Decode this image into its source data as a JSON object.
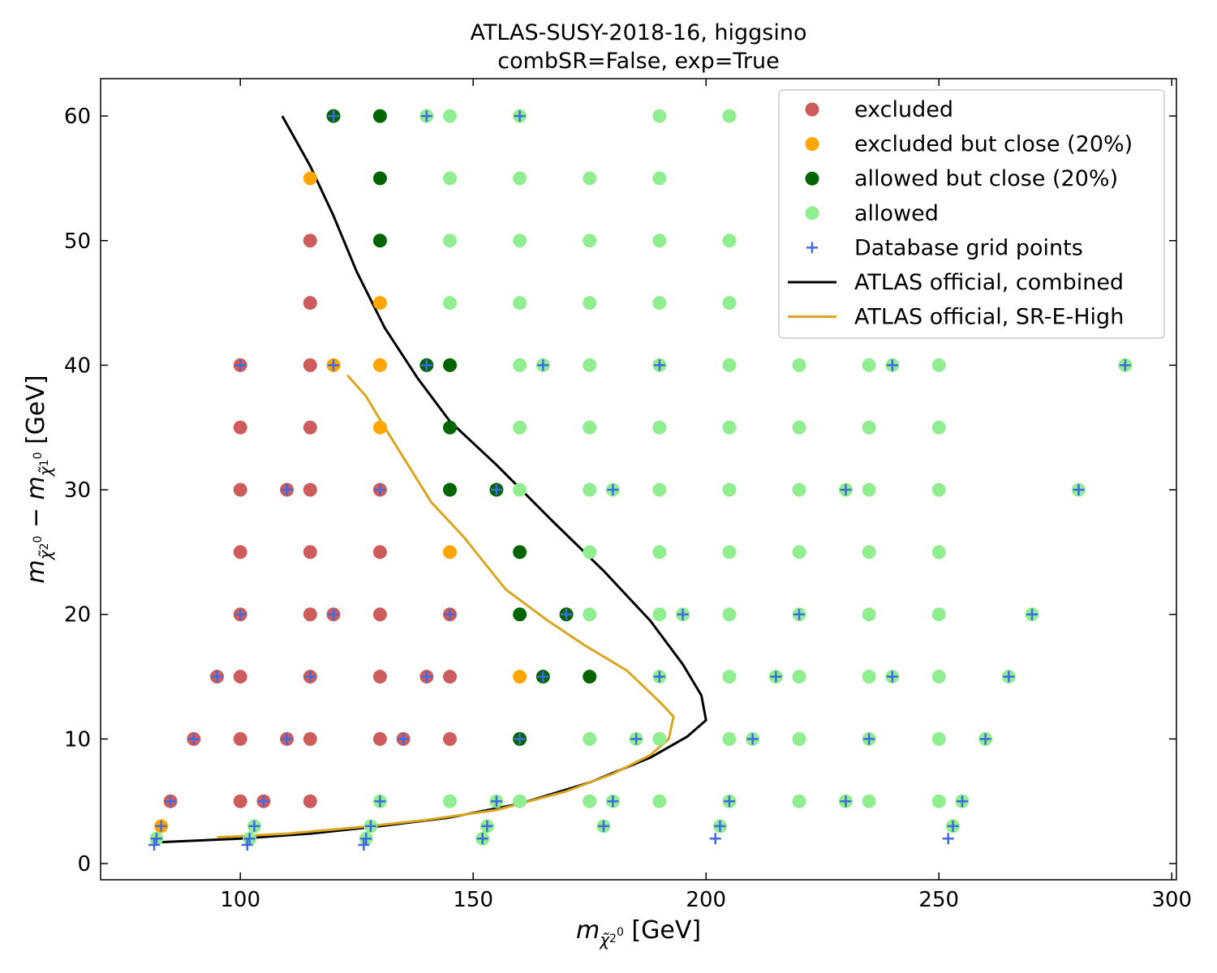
{
  "chart_data": {
    "type": "scatter",
    "title": "ATLAS-SUSY-2018-16, higgsino",
    "subtitle": "combSR=False, exp=True",
    "xlabel": "m_{χ̃2⁰} [GeV]",
    "ylabel": "m_{χ̃2⁰} − m_{χ̃1⁰} [GeV]",
    "xlim": [
      70,
      301
    ],
    "ylim": [
      -1.3,
      63
    ],
    "xticks": [
      100,
      150,
      200,
      250,
      300
    ],
    "yticks": [
      0,
      10,
      20,
      30,
      40,
      50,
      60
    ],
    "grid": false,
    "legend_placement": "upper-right",
    "colors": {
      "excluded": "#cd5c5c",
      "excluded_close": "#ffa500",
      "allowed_close": "#006400",
      "allowed": "#90ee90",
      "grid_points": "#4169e1",
      "combined": "#000000",
      "sr_e_high": "#daa520"
    },
    "series": [
      {
        "name": "excluded",
        "kind": "points",
        "color_key": "excluded",
        "points": [
          [
            85,
            5
          ],
          [
            90,
            10
          ],
          [
            95,
            15
          ],
          [
            100,
            5
          ],
          [
            100,
            10
          ],
          [
            100,
            15
          ],
          [
            100,
            20
          ],
          [
            100,
            25
          ],
          [
            100,
            30
          ],
          [
            100,
            35
          ],
          [
            100,
            40
          ],
          [
            105,
            5
          ],
          [
            110,
            10
          ],
          [
            110,
            30
          ],
          [
            115,
            5
          ],
          [
            115,
            10
          ],
          [
            115,
            15
          ],
          [
            115,
            20
          ],
          [
            115,
            25
          ],
          [
            115,
            30
          ],
          [
            115,
            35
          ],
          [
            115,
            40
          ],
          [
            115,
            45
          ],
          [
            115,
            50
          ],
          [
            120,
            20
          ],
          [
            130,
            10
          ],
          [
            130,
            15
          ],
          [
            130,
            20
          ],
          [
            130,
            25
          ],
          [
            130,
            30
          ],
          [
            135,
            10
          ],
          [
            140,
            15
          ],
          [
            145,
            10
          ],
          [
            145,
            15
          ],
          [
            145,
            20
          ]
        ]
      },
      {
        "name": "excluded but close (20%)",
        "kind": "points",
        "color_key": "excluded_close",
        "points": [
          [
            83,
            3
          ],
          [
            115,
            55
          ],
          [
            120,
            40
          ],
          [
            130,
            35
          ],
          [
            130,
            40
          ],
          [
            130,
            45
          ],
          [
            145,
            25
          ],
          [
            160,
            15
          ]
        ]
      },
      {
        "name": "allowed but close (20%)",
        "kind": "points",
        "color_key": "allowed_close",
        "points": [
          [
            120,
            60
          ],
          [
            130,
            50
          ],
          [
            130,
            55
          ],
          [
            130,
            60
          ],
          [
            140,
            40
          ],
          [
            145,
            30
          ],
          [
            145,
            35
          ],
          [
            145,
            40
          ],
          [
            155,
            30
          ],
          [
            160,
            10
          ],
          [
            160,
            20
          ],
          [
            160,
            25
          ],
          [
            165,
            15
          ],
          [
            170,
            20
          ],
          [
            175,
            15
          ]
        ]
      },
      {
        "name": "allowed",
        "kind": "points",
        "color_key": "allowed",
        "points": [
          [
            82,
            2
          ],
          [
            102,
            2
          ],
          [
            103,
            3
          ],
          [
            127,
            2
          ],
          [
            128,
            3
          ],
          [
            130,
            5
          ],
          [
            140,
            60
          ],
          [
            145,
            5
          ],
          [
            145,
            45
          ],
          [
            145,
            50
          ],
          [
            145,
            55
          ],
          [
            145,
            60
          ],
          [
            152,
            2
          ],
          [
            153,
            3
          ],
          [
            155,
            5
          ],
          [
            160,
            5
          ],
          [
            160,
            30
          ],
          [
            160,
            35
          ],
          [
            160,
            40
          ],
          [
            160,
            45
          ],
          [
            160,
            50
          ],
          [
            160,
            55
          ],
          [
            160,
            60
          ],
          [
            165,
            40
          ],
          [
            175,
            5
          ],
          [
            175,
            10
          ],
          [
            175,
            20
          ],
          [
            175,
            25
          ],
          [
            175,
            30
          ],
          [
            175,
            35
          ],
          [
            175,
            40
          ],
          [
            175,
            45
          ],
          [
            175,
            50
          ],
          [
            175,
            55
          ],
          [
            178,
            3
          ],
          [
            180,
            5
          ],
          [
            180,
            30
          ],
          [
            185,
            10
          ],
          [
            190,
            5
          ],
          [
            190,
            10
          ],
          [
            190,
            15
          ],
          [
            190,
            20
          ],
          [
            190,
            25
          ],
          [
            190,
            30
          ],
          [
            190,
            35
          ],
          [
            190,
            40
          ],
          [
            190,
            45
          ],
          [
            190,
            50
          ],
          [
            190,
            55
          ],
          [
            190,
            60
          ],
          [
            195,
            20
          ],
          [
            203,
            3
          ],
          [
            205,
            5
          ],
          [
            205,
            10
          ],
          [
            205,
            15
          ],
          [
            205,
            20
          ],
          [
            205,
            25
          ],
          [
            205,
            30
          ],
          [
            205,
            35
          ],
          [
            205,
            40
          ],
          [
            205,
            45
          ],
          [
            205,
            50
          ],
          [
            205,
            60
          ],
          [
            210,
            10
          ],
          [
            215,
            15
          ],
          [
            220,
            5
          ],
          [
            220,
            10
          ],
          [
            220,
            15
          ],
          [
            220,
            20
          ],
          [
            220,
            25
          ],
          [
            220,
            30
          ],
          [
            220,
            35
          ],
          [
            220,
            40
          ],
          [
            230,
            5
          ],
          [
            230,
            30
          ],
          [
            235,
            5
          ],
          [
            235,
            10
          ],
          [
            235,
            15
          ],
          [
            235,
            20
          ],
          [
            235,
            25
          ],
          [
            235,
            30
          ],
          [
            235,
            35
          ],
          [
            235,
            40
          ],
          [
            240,
            15
          ],
          [
            240,
            40
          ],
          [
            250,
            5
          ],
          [
            250,
            10
          ],
          [
            250,
            15
          ],
          [
            250,
            20
          ],
          [
            250,
            25
          ],
          [
            250,
            30
          ],
          [
            250,
            35
          ],
          [
            250,
            40
          ],
          [
            253,
            3
          ],
          [
            255,
            5
          ],
          [
            260,
            10
          ],
          [
            265,
            15
          ],
          [
            270,
            20
          ],
          [
            280,
            30
          ],
          [
            290,
            40
          ]
        ]
      },
      {
        "name": "Database grid points",
        "kind": "plus",
        "color_key": "grid_points",
        "points": [
          [
            82,
            2
          ],
          [
            81.5,
            1.5
          ],
          [
            83,
            3
          ],
          [
            85,
            5
          ],
          [
            90,
            10
          ],
          [
            95,
            15
          ],
          [
            100,
            20
          ],
          [
            100,
            40
          ],
          [
            101.5,
            1.5
          ],
          [
            102,
            2
          ],
          [
            103,
            3
          ],
          [
            105,
            5
          ],
          [
            110,
            10
          ],
          [
            110,
            30
          ],
          [
            115,
            15
          ],
          [
            120,
            20
          ],
          [
            120,
            40
          ],
          [
            120,
            60
          ],
          [
            126.5,
            1.5
          ],
          [
            127,
            2
          ],
          [
            128,
            3
          ],
          [
            130,
            5
          ],
          [
            130,
            30
          ],
          [
            135,
            10
          ],
          [
            140,
            15
          ],
          [
            140,
            40
          ],
          [
            140,
            60
          ],
          [
            145,
            20
          ],
          [
            152,
            2
          ],
          [
            153,
            3
          ],
          [
            155,
            5
          ],
          [
            155,
            30
          ],
          [
            160,
            10
          ],
          [
            160,
            60
          ],
          [
            165,
            15
          ],
          [
            165,
            40
          ],
          [
            170,
            20
          ],
          [
            178,
            3
          ],
          [
            180,
            5
          ],
          [
            180,
            30
          ],
          [
            185,
            10
          ],
          [
            190,
            15
          ],
          [
            190,
            40
          ],
          [
            195,
            20
          ],
          [
            202,
            2
          ],
          [
            203,
            3
          ],
          [
            205,
            5
          ],
          [
            210,
            10
          ],
          [
            215,
            15
          ],
          [
            220,
            20
          ],
          [
            230,
            5
          ],
          [
            230,
            30
          ],
          [
            235,
            10
          ],
          [
            240,
            15
          ],
          [
            240,
            40
          ],
          [
            252,
            2
          ],
          [
            253,
            3
          ],
          [
            255,
            5
          ],
          [
            260,
            10
          ],
          [
            265,
            15
          ],
          [
            270,
            20
          ],
          [
            280,
            30
          ],
          [
            290,
            40
          ]
        ]
      },
      {
        "name": "ATLAS official, combined",
        "kind": "line",
        "color_key": "combined",
        "points": [
          [
            82,
            1.7
          ],
          [
            100,
            2.0
          ],
          [
            115,
            2.4
          ],
          [
            130,
            3.0
          ],
          [
            145,
            3.7
          ],
          [
            160,
            4.8
          ],
          [
            175,
            6.5
          ],
          [
            188,
            8.5
          ],
          [
            196,
            10.2
          ],
          [
            200,
            11.5
          ],
          [
            199,
            13.5
          ],
          [
            195,
            16.0
          ],
          [
            188,
            19.5
          ],
          [
            178,
            23.5
          ],
          [
            167,
            27.5
          ],
          [
            155,
            32.0
          ],
          [
            145,
            35.5
          ],
          [
            138,
            39.0
          ],
          [
            131,
            43.0
          ],
          [
            125,
            47.5
          ],
          [
            120,
            52.0
          ],
          [
            115,
            56.0
          ],
          [
            109,
            60.0
          ]
        ]
      },
      {
        "name": "ATLAS official, SR-E-High",
        "kind": "line",
        "color_key": "sr_e_high",
        "points": [
          [
            95,
            2.1
          ],
          [
            110,
            2.4
          ],
          [
            125,
            2.9
          ],
          [
            140,
            3.5
          ],
          [
            155,
            4.3
          ],
          [
            170,
            5.8
          ],
          [
            180,
            7.2
          ],
          [
            188,
            8.7
          ],
          [
            192,
            10.0
          ],
          [
            193,
            11.8
          ],
          [
            190,
            13.0
          ],
          [
            183,
            15.5
          ],
          [
            174,
            17.5
          ],
          [
            166,
            19.5
          ],
          [
            157,
            22.0
          ],
          [
            148,
            26.2
          ],
          [
            141,
            29.0
          ],
          [
            136,
            32.0
          ],
          [
            131,
            35.0
          ],
          [
            127,
            37.5
          ],
          [
            123,
            39.2
          ]
        ]
      }
    ]
  }
}
